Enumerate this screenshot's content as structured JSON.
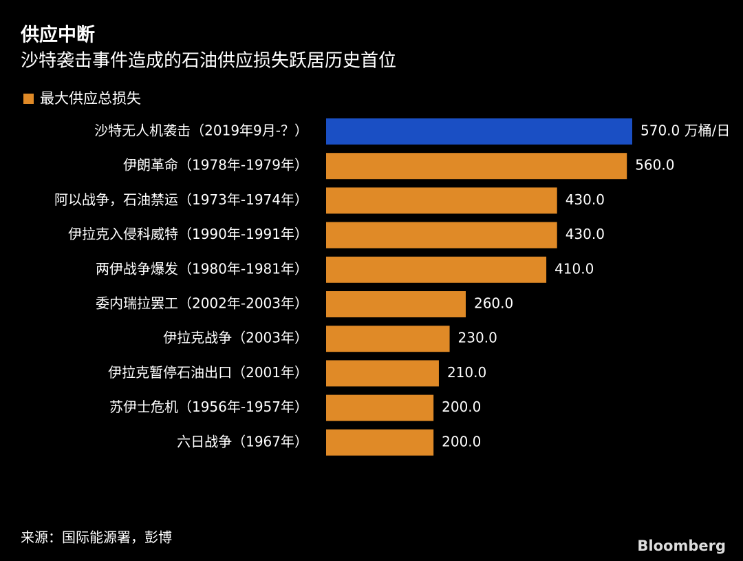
{
  "chart_data": {
    "type": "barh",
    "title": "供应中断",
    "subtitle": "沙特袭击事件造成的石油供应损失跃居历史首位",
    "categories": [
      "沙特无人机袭击（2019年9月-？）",
      "伊朗革命（1978年-1979年）",
      "阿以战争，石油禁运（1973年-1974年）",
      "伊拉克入侵科威特（1990年-1991年）",
      "两伊战争爆发（1980年-1981年）",
      "委内瑞拉罢工（2002年-2003年）",
      "伊拉克战争（2003年）",
      "伊拉克暂停石油出口（2001年）",
      "苏伊士危机（1956年-1957年）",
      "六日战争（1967年）"
    ],
    "series": [
      {
        "name": "最大供应总损失",
        "color": "#e08a27",
        "values": [
          570,
          560,
          430,
          430,
          410,
          260,
          230,
          210,
          200,
          200
        ],
        "value_labels": [
          "570.0 万桶/日",
          "560.0",
          "430.0",
          "430.0",
          "410.0",
          "260.0",
          "230.0",
          "210.0",
          "200.0",
          "200.0"
        ],
        "colors": [
          "#1a4fc4",
          "#e08a27",
          "#e08a27",
          "#e08a27",
          "#e08a27",
          "#e08a27",
          "#e08a27",
          "#e08a27",
          "#e08a27",
          "#e08a27"
        ]
      }
    ],
    "source": "来源：国际能源署，彭博",
    "brand": "Bloomberg"
  }
}
